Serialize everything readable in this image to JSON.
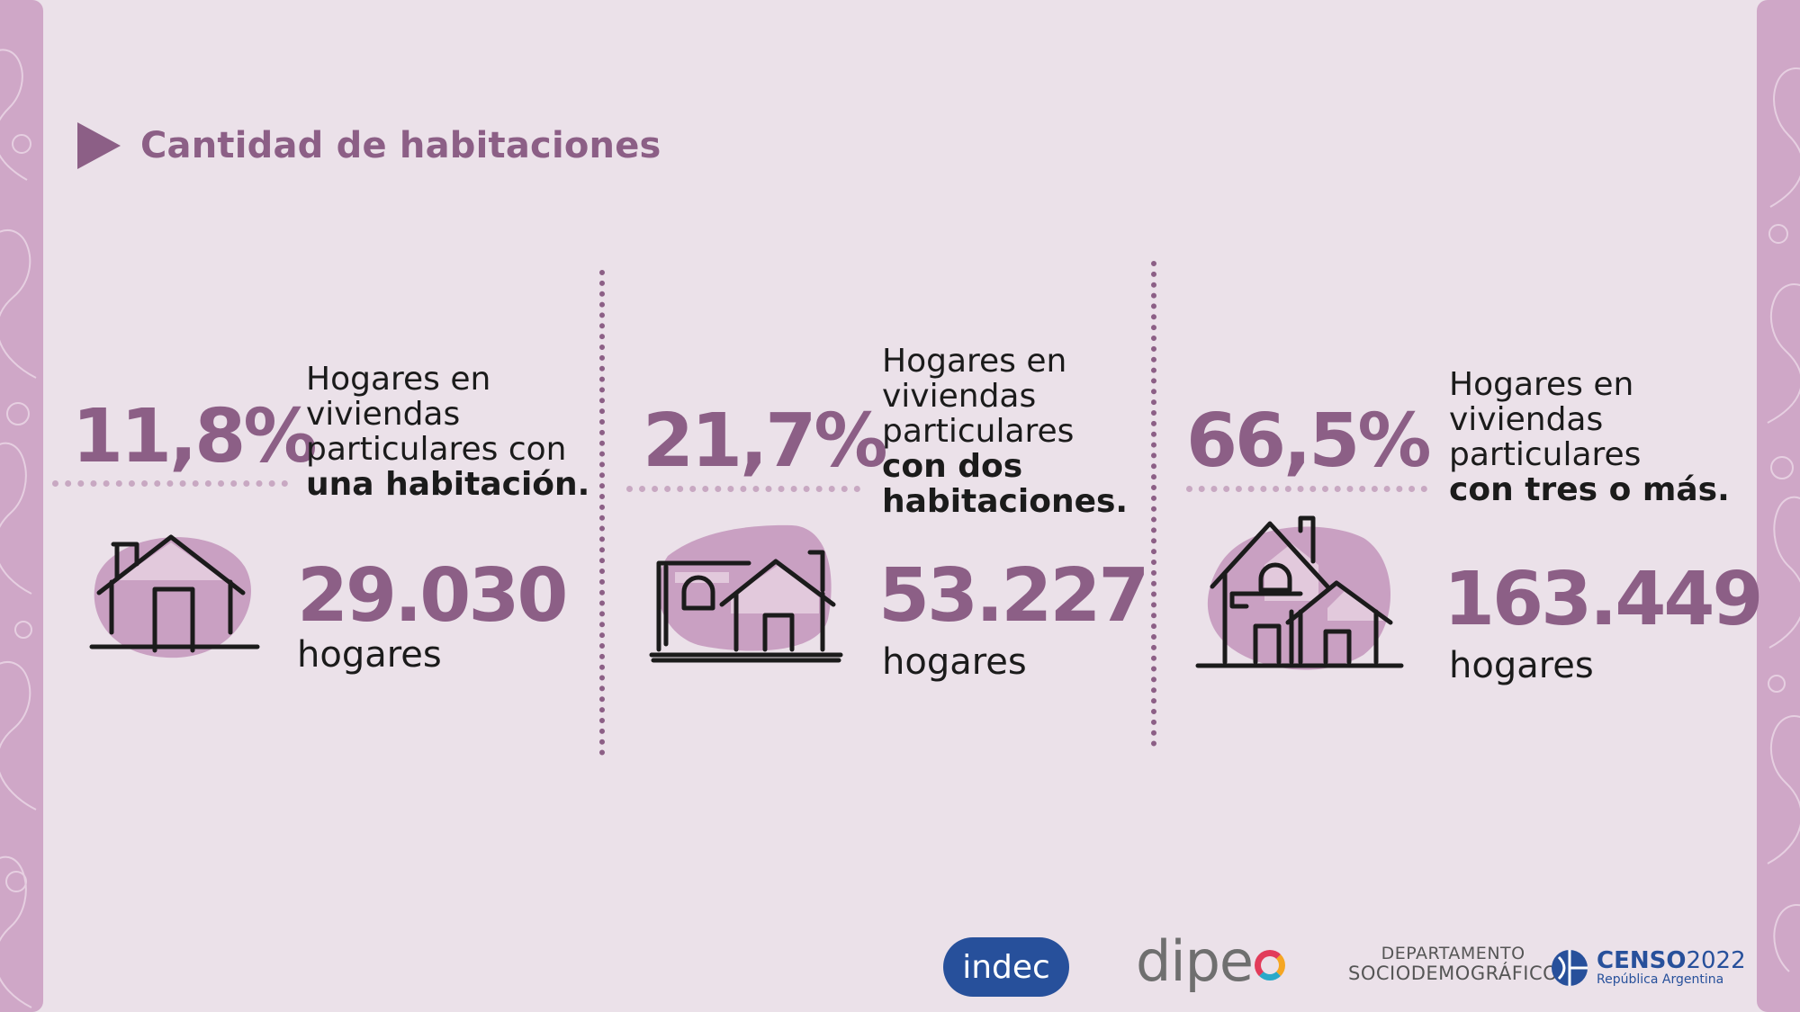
{
  "header": {
    "title": "Cantidad de habitaciones"
  },
  "stats": [
    {
      "percent": "11,8%",
      "desc_lines": [
        "Hogares en",
        "viviendas",
        "particulares con"
      ],
      "desc_bold": [
        "una habitación."
      ],
      "count": "29.030",
      "unit": "hogares"
    },
    {
      "percent": "21,7%",
      "desc_lines": [
        "Hogares en",
        "viviendas",
        "particulares"
      ],
      "desc_bold": [
        "con dos",
        "habitaciones."
      ],
      "count": "53.227",
      "unit": "hogares"
    },
    {
      "percent": "66,5%",
      "desc_lines": [
        "Hogares en",
        "viviendas",
        "particulares"
      ],
      "desc_bold": [
        "con tres o más."
      ],
      "count": "163.449",
      "unit": "hogares"
    }
  ],
  "logos": {
    "indec": "indec",
    "dipec": "dipe",
    "depto_line1": "DEPARTAMENTO",
    "depto_line2": "SOCIODEMOGRÁFICO",
    "censo_title": "CENSO",
    "censo_year": "2022",
    "censo_sub": "República Argentina"
  },
  "colors": {
    "accent": "#8c5f86",
    "background": "#ebe1e9",
    "blob": "#c9a0c2",
    "text": "#1b1b1b"
  },
  "icons": [
    "house-one-room-icon",
    "house-two-rooms-icon",
    "house-three-rooms-icon"
  ]
}
